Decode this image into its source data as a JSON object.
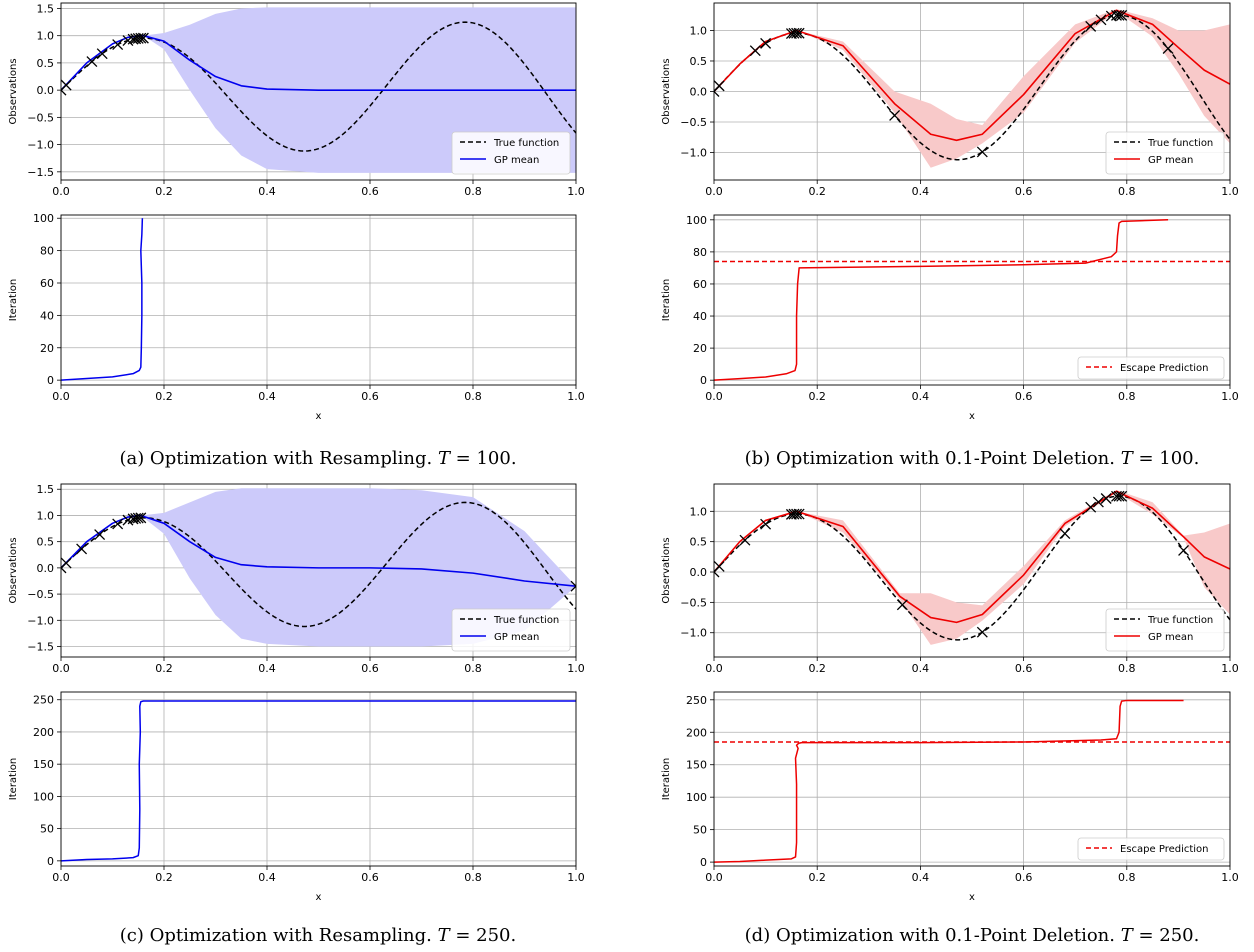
{
  "colors": {
    "true_fn": "#000000",
    "resample": "#0000ee",
    "resample_band": "#cccafa",
    "deletion": "#ee0000",
    "deletion_band": "#f8c9c9",
    "grid": "#b0b0b0",
    "marker": "#000000"
  },
  "captions": [
    {
      "text": "(a) Optimization with Resampling. ",
      "var": "T",
      "rest": " = 100."
    },
    {
      "text": "(b) Optimization with 0.1-Point Deletion. ",
      "var": "T",
      "rest": " = 100."
    },
    {
      "text": "(c) Optimization with Resampling. ",
      "var": "T",
      "rest": " = 250."
    },
    {
      "text": "(d) Optimization with 0.1-Point Deletion. ",
      "var": "T",
      "rest": " = 250."
    }
  ],
  "chart_data": [
    {
      "panel": "a-top",
      "type": "line",
      "xlabel": "",
      "ylabel": "Observations",
      "xlim": [
        0,
        1
      ],
      "ylim": [
        -1.65,
        1.6
      ],
      "xticks": [
        "0.0",
        "0.2",
        "0.4",
        "0.6",
        "0.8",
        "1.0"
      ],
      "yticks": [
        "−1.5",
        "−1.0",
        "−0.5",
        "0.0",
        "0.5",
        "1.0",
        "1.5"
      ],
      "ytick_values": [
        -1.5,
        -1.0,
        -0.5,
        0.0,
        0.5,
        1.0,
        1.5
      ],
      "grid": true,
      "legend_placement": "lower-right",
      "series": [
        {
          "name": "True function",
          "style": "dashed",
          "color": "#000000"
        },
        {
          "name": "GP mean",
          "style": "solid",
          "color": "#0000ee",
          "x": [
            0.0,
            0.05,
            0.1,
            0.13,
            0.16,
            0.2,
            0.25,
            0.3,
            0.35,
            0.4,
            0.5,
            0.6,
            0.7,
            0.8,
            0.9,
            1.0
          ],
          "y": [
            0.0,
            0.5,
            0.85,
            0.97,
            1.0,
            0.9,
            0.55,
            0.25,
            0.08,
            0.02,
            0.0,
            0.0,
            0.0,
            0.0,
            0.0,
            0.0
          ],
          "band_upper": [
            0.0,
            0.5,
            0.85,
            0.97,
            1.0,
            1.05,
            1.2,
            1.4,
            1.5,
            1.52,
            1.52,
            1.52,
            1.52,
            1.52,
            1.52,
            1.52
          ],
          "band_lower": [
            0.0,
            0.5,
            0.85,
            0.97,
            1.0,
            0.75,
            0.0,
            -0.7,
            -1.2,
            -1.45,
            -1.52,
            -1.52,
            -1.52,
            -1.52,
            -1.52,
            -1.52
          ]
        }
      ],
      "samples_x": [
        0.0,
        0.01,
        0.06,
        0.08,
        0.11,
        0.13,
        0.14,
        0.145,
        0.15,
        0.155,
        0.16
      ]
    },
    {
      "panel": "a-bottom",
      "type": "line",
      "xlabel": "x",
      "ylabel": "Iteration",
      "xlim": [
        0,
        1
      ],
      "ylim": [
        -3,
        102
      ],
      "xticks": [
        "0.0",
        "0.2",
        "0.4",
        "0.6",
        "0.8",
        "1.0"
      ],
      "yticks": [
        "0",
        "20",
        "40",
        "60",
        "80",
        "100"
      ],
      "ytick_values": [
        0,
        20,
        40,
        60,
        80,
        100
      ],
      "grid": true,
      "series": [
        {
          "name": "",
          "color": "#0000ee",
          "x": [
            0.0,
            0.05,
            0.1,
            0.14,
            0.152,
            0.155,
            0.156,
            0.157,
            0.157,
            0.155,
            0.157,
            0.158
          ],
          "y": [
            0,
            1,
            2,
            4,
            6,
            8,
            20,
            40,
            60,
            80,
            90,
            100
          ]
        }
      ]
    },
    {
      "panel": "b-top",
      "type": "line",
      "xlabel": "",
      "ylabel": "Observations",
      "xlim": [
        0,
        1
      ],
      "ylim": [
        -1.45,
        1.45
      ],
      "xticks": [
        "0.0",
        "0.2",
        "0.4",
        "0.6",
        "0.8",
        "1.0"
      ],
      "yticks": [
        "−1.0",
        "−0.5",
        "0.0",
        "0.5",
        "1.0"
      ],
      "ytick_values": [
        -1.0,
        -0.5,
        0.0,
        0.5,
        1.0
      ],
      "grid": true,
      "legend_placement": "lower-right",
      "series": [
        {
          "name": "True function",
          "style": "dashed",
          "color": "#000000"
        },
        {
          "name": "GP mean",
          "style": "solid",
          "color": "#ee0000",
          "x": [
            0.0,
            0.05,
            0.1,
            0.16,
            0.25,
            0.35,
            0.42,
            0.47,
            0.52,
            0.6,
            0.7,
            0.78,
            0.85,
            0.9,
            0.95,
            1.0
          ],
          "y": [
            0.0,
            0.45,
            0.82,
            1.0,
            0.75,
            -0.2,
            -0.7,
            -0.8,
            -0.7,
            -0.05,
            0.95,
            1.33,
            1.1,
            0.72,
            0.35,
            0.12
          ],
          "band_upper": [
            0.0,
            0.45,
            0.82,
            1.0,
            0.82,
            0.0,
            -0.2,
            -0.45,
            -0.55,
            0.25,
            1.1,
            1.35,
            1.2,
            1.0,
            1.0,
            1.1
          ],
          "band_lower": [
            0.0,
            0.45,
            0.82,
            1.0,
            0.68,
            -0.35,
            -1.25,
            -1.1,
            -0.85,
            -0.35,
            0.8,
            1.31,
            0.9,
            0.3,
            -0.4,
            -0.85
          ]
        }
      ],
      "samples_x": [
        0.0,
        0.01,
        0.08,
        0.1,
        0.15,
        0.155,
        0.16,
        0.165,
        0.35,
        0.52,
        0.73,
        0.75,
        0.77,
        0.78,
        0.785,
        0.79,
        0.88
      ]
    },
    {
      "panel": "b-bottom",
      "type": "line",
      "xlabel": "x",
      "ylabel": "Iteration",
      "xlim": [
        0,
        1
      ],
      "ylim": [
        -3,
        103
      ],
      "xticks": [
        "0.0",
        "0.2",
        "0.4",
        "0.6",
        "0.8",
        "1.0"
      ],
      "yticks": [
        "0",
        "20",
        "40",
        "60",
        "80",
        "100"
      ],
      "ytick_values": [
        0,
        20,
        40,
        60,
        80,
        100
      ],
      "grid": true,
      "legend_placement": "lower-right",
      "escape_prediction": 74,
      "series": [
        {
          "name": "",
          "color": "#ee0000",
          "x": [
            0.0,
            0.05,
            0.1,
            0.14,
            0.157,
            0.16,
            0.16,
            0.162,
            0.165,
            0.4,
            0.6,
            0.72,
            0.77,
            0.78,
            0.782,
            0.785,
            0.79,
            0.88
          ],
          "y": [
            0,
            1,
            2,
            4,
            6,
            10,
            40,
            60,
            70,
            71,
            72,
            73,
            77,
            80,
            90,
            98,
            99,
            100
          ]
        },
        {
          "name": "Escape Prediction",
          "style": "dashed",
          "color": "#ee0000"
        }
      ]
    },
    {
      "panel": "c-top",
      "type": "line",
      "xlabel": "",
      "ylabel": "Observations",
      "xlim": [
        0,
        1
      ],
      "ylim": [
        -1.7,
        1.6
      ],
      "xticks": [
        "0.0",
        "0.2",
        "0.4",
        "0.6",
        "0.8",
        "1.0"
      ],
      "yticks": [
        "−1.5",
        "−1.0",
        "−0.5",
        "0.0",
        "0.5",
        "1.0",
        "1.5"
      ],
      "ytick_values": [
        -1.5,
        -1.0,
        -0.5,
        0.0,
        0.5,
        1.0,
        1.5
      ],
      "grid": true,
      "legend_placement": "lower-right",
      "series": [
        {
          "name": "True function",
          "style": "dashed",
          "color": "#000000"
        },
        {
          "name": "GP mean",
          "style": "solid",
          "color": "#0000ee",
          "x": [
            0.0,
            0.05,
            0.1,
            0.13,
            0.155,
            0.2,
            0.25,
            0.3,
            0.35,
            0.4,
            0.5,
            0.6,
            0.7,
            0.8,
            0.9,
            1.0
          ],
          "y": [
            0.0,
            0.5,
            0.85,
            0.97,
            1.0,
            0.85,
            0.5,
            0.2,
            0.06,
            0.02,
            0.0,
            0.0,
            -0.02,
            -0.1,
            -0.25,
            -0.35
          ],
          "band_upper": [
            0.0,
            0.5,
            0.85,
            0.97,
            1.0,
            1.05,
            1.25,
            1.45,
            1.52,
            1.52,
            1.52,
            1.52,
            1.48,
            1.35,
            0.7,
            -0.35
          ],
          "band_lower": [
            0.0,
            0.5,
            0.85,
            0.97,
            1.0,
            0.65,
            -0.2,
            -0.9,
            -1.35,
            -1.45,
            -1.5,
            -1.5,
            -1.5,
            -1.45,
            -1.2,
            -0.35
          ]
        }
      ],
      "samples_x": [
        0.0,
        0.01,
        0.04,
        0.075,
        0.11,
        0.13,
        0.14,
        0.145,
        0.15,
        0.155,
        1.0
      ]
    },
    {
      "panel": "c-bottom",
      "type": "line",
      "xlabel": "x",
      "ylabel": "Iteration",
      "xlim": [
        0,
        1
      ],
      "ylim": [
        -8,
        262
      ],
      "xticks": [
        "0.0",
        "0.2",
        "0.4",
        "0.6",
        "0.8",
        "1.0"
      ],
      "yticks": [
        "0",
        "50",
        "100",
        "150",
        "200",
        "250"
      ],
      "ytick_values": [
        0,
        50,
        100,
        150,
        200,
        250
      ],
      "grid": true,
      "series": [
        {
          "name": "",
          "color": "#0000ee",
          "x": [
            0.0,
            0.05,
            0.1,
            0.14,
            0.15,
            0.152,
            0.153,
            0.152,
            0.154,
            0.153,
            0.155,
            0.16,
            0.4,
            0.7,
            1.0
          ],
          "y": [
            0,
            2,
            3,
            5,
            8,
            20,
            80,
            150,
            200,
            240,
            247,
            248,
            248,
            248,
            248
          ]
        }
      ]
    },
    {
      "panel": "d-top",
      "type": "line",
      "xlabel": "",
      "ylabel": "Observations",
      "xlim": [
        0,
        1
      ],
      "ylim": [
        -1.4,
        1.45
      ],
      "xticks": [
        "0.0",
        "0.2",
        "0.4",
        "0.6",
        "0.8",
        "1.0"
      ],
      "yticks": [
        "−1.0",
        "−0.5",
        "0.0",
        "0.5",
        "1.0"
      ],
      "ytick_values": [
        -1.0,
        -0.5,
        0.0,
        0.5,
        1.0
      ],
      "grid": true,
      "legend_placement": "lower-right",
      "series": [
        {
          "name": "True function",
          "style": "dashed",
          "color": "#000000"
        },
        {
          "name": "GP mean",
          "style": "solid",
          "color": "#ee0000",
          "x": [
            0.0,
            0.05,
            0.1,
            0.16,
            0.25,
            0.36,
            0.42,
            0.47,
            0.52,
            0.6,
            0.68,
            0.78,
            0.85,
            0.91,
            0.95,
            1.0
          ],
          "y": [
            0.0,
            0.5,
            0.85,
            1.0,
            0.75,
            -0.4,
            -0.75,
            -0.83,
            -0.7,
            -0.05,
            0.8,
            1.33,
            1.05,
            0.58,
            0.25,
            0.05
          ],
          "band_upper": [
            0.0,
            0.5,
            0.85,
            1.0,
            0.85,
            -0.35,
            -0.35,
            -0.5,
            -0.55,
            0.1,
            0.85,
            1.35,
            1.15,
            0.6,
            0.65,
            0.8
          ],
          "band_lower": [
            0.0,
            0.5,
            0.85,
            1.0,
            0.65,
            -0.45,
            -1.2,
            -1.1,
            -0.8,
            -0.2,
            0.75,
            1.31,
            0.95,
            0.56,
            -0.25,
            -0.7
          ]
        }
      ],
      "samples_x": [
        0.0,
        0.01,
        0.06,
        0.1,
        0.15,
        0.155,
        0.16,
        0.165,
        0.365,
        0.52,
        0.68,
        0.73,
        0.745,
        0.76,
        0.78,
        0.785,
        0.79,
        0.91
      ]
    },
    {
      "panel": "d-bottom",
      "type": "line",
      "xlabel": "x",
      "ylabel": "Iteration",
      "xlim": [
        0,
        1
      ],
      "ylim": [
        -6,
        262
      ],
      "xticks": [
        "0.0",
        "0.2",
        "0.4",
        "0.6",
        "0.8",
        "1.0"
      ],
      "yticks": [
        "0",
        "50",
        "100",
        "150",
        "200",
        "250"
      ],
      "ytick_values": [
        0,
        50,
        100,
        150,
        200,
        250
      ],
      "grid": true,
      "legend_placement": "lower-right",
      "escape_prediction": 185,
      "series": [
        {
          "name": "",
          "color": "#ee0000",
          "x": [
            0.0,
            0.05,
            0.1,
            0.15,
            0.158,
            0.16,
            0.16,
            0.158,
            0.163,
            0.16,
            0.164,
            0.17,
            0.4,
            0.6,
            0.75,
            0.78,
            0.785,
            0.787,
            0.79,
            0.8,
            0.91
          ],
          "y": [
            0,
            1,
            3,
            5,
            8,
            30,
            120,
            160,
            175,
            180,
            183,
            184,
            184,
            185,
            188,
            190,
            200,
            240,
            248,
            249,
            249
          ]
        },
        {
          "name": "Escape Prediction",
          "style": "dashed",
          "color": "#ee0000"
        }
      ]
    }
  ]
}
